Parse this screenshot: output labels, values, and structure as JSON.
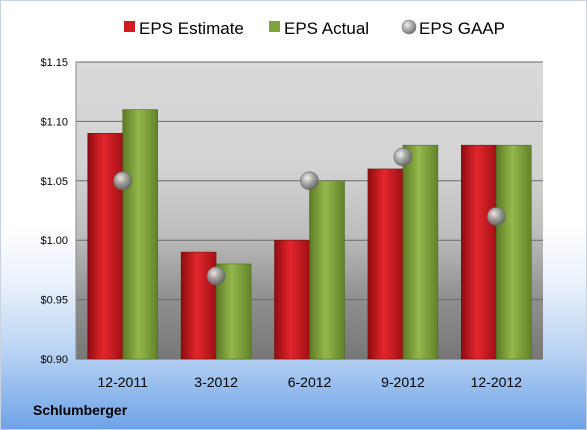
{
  "company": "Schlumberger",
  "colors": {
    "estimate": "#d01a1f",
    "actual": "#7ea33b",
    "gaap": "#9a9a9a"
  },
  "chart_data": {
    "type": "bar",
    "categories": [
      "12-2011",
      "3-2012",
      "6-2012",
      "9-2012",
      "12-2012"
    ],
    "series": [
      {
        "name": "EPS Estimate",
        "kind": "bar",
        "values": [
          1.09,
          0.99,
          1.0,
          1.06,
          1.08
        ]
      },
      {
        "name": "EPS Actual",
        "kind": "bar",
        "values": [
          1.11,
          0.98,
          1.05,
          1.08,
          1.08
        ]
      },
      {
        "name": "EPS GAAP",
        "kind": "marker",
        "values": [
          1.05,
          0.97,
          1.05,
          1.07,
          1.02
        ]
      }
    ],
    "ylim": [
      0.9,
      1.15
    ],
    "yticks": [
      0.9,
      0.95,
      1.0,
      1.05,
      1.1,
      1.15
    ],
    "ytick_labels": [
      "$0.90",
      "$0.95",
      "$1.00",
      "$1.05",
      "$1.10",
      "$1.15"
    ],
    "legend": "top",
    "grid": true
  }
}
